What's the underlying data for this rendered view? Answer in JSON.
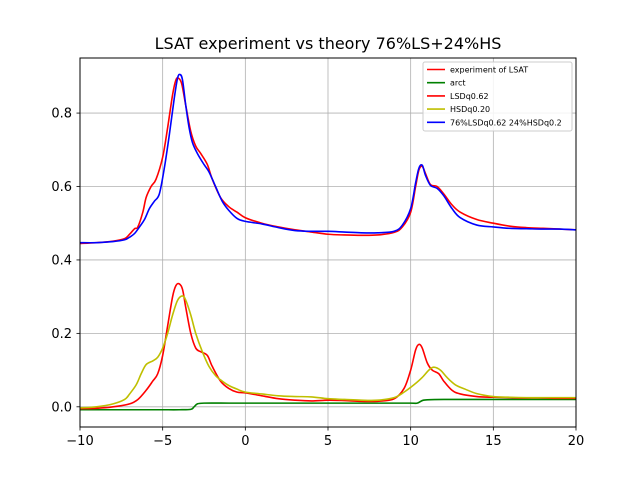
{
  "chart_data": {
    "type": "line",
    "title": "LSAT  experiment vs theory 76%LS+24%HS",
    "xlabel": "",
    "ylabel": "",
    "xlim": [
      -10,
      20
    ],
    "ylim": [
      -0.055,
      0.95
    ],
    "x_ticks": [
      -10,
      -5,
      0,
      5,
      10,
      15,
      20
    ],
    "x_tick_labels": [
      "−10",
      "−5",
      "0",
      "5",
      "10",
      "15",
      "20"
    ],
    "y_ticks": [
      0.0,
      0.2,
      0.4,
      0.6,
      0.8
    ],
    "y_tick_labels": [
      "0.0",
      "0.2",
      "0.4",
      "0.6",
      "0.8"
    ],
    "grid": true,
    "legend_position": "top-right",
    "series": [
      {
        "name": "experiment of LSAT",
        "color": "#ff0000",
        "points": [
          [
            -10,
            0.445
          ],
          [
            -9,
            0.447
          ],
          [
            -8,
            0.451
          ],
          [
            -7.3,
            0.458
          ],
          [
            -7,
            0.47
          ],
          [
            -6.7,
            0.485
          ],
          [
            -6.5,
            0.49
          ],
          [
            -6.2,
            0.53
          ],
          [
            -6,
            0.57
          ],
          [
            -5.7,
            0.6
          ],
          [
            -5.4,
            0.62
          ],
          [
            -5,
            0.68
          ],
          [
            -4.7,
            0.76
          ],
          [
            -4.4,
            0.85
          ],
          [
            -4.2,
            0.89
          ],
          [
            -4.05,
            0.895
          ],
          [
            -3.85,
            0.88
          ],
          [
            -3.6,
            0.82
          ],
          [
            -3.3,
            0.75
          ],
          [
            -3,
            0.71
          ],
          [
            -2.7,
            0.69
          ],
          [
            -2.3,
            0.66
          ],
          [
            -2,
            0.62
          ],
          [
            -1.5,
            0.57
          ],
          [
            -1,
            0.545
          ],
          [
            -0.5,
            0.53
          ],
          [
            0,
            0.515
          ],
          [
            1,
            0.5
          ],
          [
            2,
            0.49
          ],
          [
            3,
            0.482
          ],
          [
            4,
            0.476
          ],
          [
            5,
            0.47
          ],
          [
            6,
            0.468
          ],
          [
            7,
            0.467
          ],
          [
            8,
            0.468
          ],
          [
            9,
            0.475
          ],
          [
            9.5,
            0.49
          ],
          [
            10,
            0.53
          ],
          [
            10.3,
            0.6
          ],
          [
            10.5,
            0.645
          ],
          [
            10.7,
            0.655
          ],
          [
            10.9,
            0.635
          ],
          [
            11.2,
            0.605
          ],
          [
            11.6,
            0.6
          ],
          [
            12,
            0.58
          ],
          [
            12.5,
            0.55
          ],
          [
            13,
            0.53
          ],
          [
            14,
            0.51
          ],
          [
            15,
            0.5
          ],
          [
            16,
            0.492
          ],
          [
            17,
            0.488
          ],
          [
            18,
            0.486
          ],
          [
            19,
            0.484
          ],
          [
            20,
            0.482
          ]
        ]
      },
      {
        "name": "arct",
        "color": "#008000",
        "points": [
          [
            -10,
            -0.008
          ],
          [
            -9,
            -0.008
          ],
          [
            -8,
            -0.008
          ],
          [
            -7,
            -0.008
          ],
          [
            -6,
            -0.008
          ],
          [
            -5,
            -0.008
          ],
          [
            -4,
            -0.008
          ],
          [
            -3.3,
            -0.007
          ],
          [
            -3.1,
            0.0
          ],
          [
            -2.9,
            0.008
          ],
          [
            -2.5,
            0.01
          ],
          [
            -1,
            0.01
          ],
          [
            0,
            0.01
          ],
          [
            2,
            0.01
          ],
          [
            4,
            0.01
          ],
          [
            6,
            0.01
          ],
          [
            8,
            0.01
          ],
          [
            10,
            0.01
          ],
          [
            10.4,
            0.01
          ],
          [
            10.7,
            0.017
          ],
          [
            11,
            0.019
          ],
          [
            12,
            0.02
          ],
          [
            14,
            0.02
          ],
          [
            16,
            0.02
          ],
          [
            18,
            0.02
          ],
          [
            20,
            0.02
          ]
        ]
      },
      {
        "name": "LSDq0.62",
        "color": "#ff0000",
        "points": [
          [
            -10,
            -0.005
          ],
          [
            -9,
            -0.004
          ],
          [
            -8,
            0.0
          ],
          [
            -7,
            0.008
          ],
          [
            -6.5,
            0.02
          ],
          [
            -6,
            0.045
          ],
          [
            -5.6,
            0.07
          ],
          [
            -5.3,
            0.09
          ],
          [
            -5,
            0.14
          ],
          [
            -4.7,
            0.22
          ],
          [
            -4.4,
            0.3
          ],
          [
            -4.2,
            0.33
          ],
          [
            -4.0,
            0.335
          ],
          [
            -3.8,
            0.32
          ],
          [
            -3.6,
            0.27
          ],
          [
            -3.3,
            0.2
          ],
          [
            -3,
            0.16
          ],
          [
            -2.7,
            0.15
          ],
          [
            -2.3,
            0.14
          ],
          [
            -2,
            0.11
          ],
          [
            -1.5,
            0.07
          ],
          [
            -1,
            0.05
          ],
          [
            -0.5,
            0.04
          ],
          [
            0,
            0.038
          ],
          [
            1,
            0.03
          ],
          [
            2,
            0.022
          ],
          [
            3,
            0.018
          ],
          [
            4,
            0.016
          ],
          [
            5,
            0.018
          ],
          [
            6,
            0.017
          ],
          [
            7,
            0.015
          ],
          [
            8,
            0.015
          ],
          [
            9,
            0.022
          ],
          [
            9.6,
            0.05
          ],
          [
            10,
            0.1
          ],
          [
            10.3,
            0.155
          ],
          [
            10.5,
            0.17
          ],
          [
            10.7,
            0.16
          ],
          [
            11,
            0.12
          ],
          [
            11.3,
            0.1
          ],
          [
            11.7,
            0.09
          ],
          [
            12,
            0.07
          ],
          [
            12.5,
            0.045
          ],
          [
            13,
            0.035
          ],
          [
            14,
            0.028
          ],
          [
            15,
            0.026
          ],
          [
            16,
            0.025
          ],
          [
            17,
            0.024
          ],
          [
            18,
            0.024
          ],
          [
            19,
            0.023
          ],
          [
            20,
            0.023
          ]
        ]
      },
      {
        "name": "HSDq0.20",
        "color": "#bfbf00",
        "points": [
          [
            -10,
            -0.003
          ],
          [
            -9,
            0.0
          ],
          [
            -8,
            0.008
          ],
          [
            -7.3,
            0.02
          ],
          [
            -7,
            0.035
          ],
          [
            -6.6,
            0.06
          ],
          [
            -6.3,
            0.09
          ],
          [
            -6,
            0.115
          ],
          [
            -5.6,
            0.125
          ],
          [
            -5.3,
            0.135
          ],
          [
            -5,
            0.16
          ],
          [
            -4.7,
            0.2
          ],
          [
            -4.4,
            0.25
          ],
          [
            -4.1,
            0.29
          ],
          [
            -3.8,
            0.302
          ],
          [
            -3.6,
            0.29
          ],
          [
            -3.3,
            0.25
          ],
          [
            -3,
            0.2
          ],
          [
            -2.6,
            0.15
          ],
          [
            -2.2,
            0.11
          ],
          [
            -1.8,
            0.085
          ],
          [
            -1.4,
            0.07
          ],
          [
            -1,
            0.058
          ],
          [
            -0.5,
            0.048
          ],
          [
            0,
            0.04
          ],
          [
            1,
            0.035
          ],
          [
            2,
            0.03
          ],
          [
            3,
            0.028
          ],
          [
            4,
            0.027
          ],
          [
            5,
            0.022
          ],
          [
            6,
            0.02
          ],
          [
            7,
            0.018
          ],
          [
            8,
            0.018
          ],
          [
            9,
            0.025
          ],
          [
            9.6,
            0.04
          ],
          [
            10.2,
            0.06
          ],
          [
            10.7,
            0.08
          ],
          [
            11.1,
            0.1
          ],
          [
            11.4,
            0.108
          ],
          [
            11.8,
            0.1
          ],
          [
            12.2,
            0.08
          ],
          [
            12.7,
            0.06
          ],
          [
            13.3,
            0.048
          ],
          [
            14,
            0.036
          ],
          [
            15,
            0.028
          ],
          [
            16,
            0.026
          ],
          [
            17,
            0.025
          ],
          [
            18,
            0.025
          ],
          [
            19,
            0.025
          ],
          [
            20,
            0.025
          ]
        ]
      },
      {
        "name": "76%LSDq0.62 24%HSDq0.2",
        "color": "#0000ff",
        "points": [
          [
            -10,
            0.447
          ],
          [
            -9,
            0.447
          ],
          [
            -8,
            0.45
          ],
          [
            -7.3,
            0.455
          ],
          [
            -7,
            0.462
          ],
          [
            -6.7,
            0.472
          ],
          [
            -6.4,
            0.49
          ],
          [
            -6.1,
            0.51
          ],
          [
            -5.8,
            0.54
          ],
          [
            -5.5,
            0.56
          ],
          [
            -5.2,
            0.58
          ],
          [
            -4.9,
            0.65
          ],
          [
            -4.6,
            0.74
          ],
          [
            -4.3,
            0.84
          ],
          [
            -4.1,
            0.895
          ],
          [
            -3.95,
            0.905
          ],
          [
            -3.8,
            0.89
          ],
          [
            -3.6,
            0.82
          ],
          [
            -3.4,
            0.76
          ],
          [
            -3.2,
            0.72
          ],
          [
            -2.9,
            0.69
          ],
          [
            -2.5,
            0.66
          ],
          [
            -2.2,
            0.64
          ],
          [
            -1.8,
            0.6
          ],
          [
            -1.4,
            0.56
          ],
          [
            -1,
            0.535
          ],
          [
            -0.5,
            0.513
          ],
          [
            0,
            0.505
          ],
          [
            1,
            0.498
          ],
          [
            2,
            0.488
          ],
          [
            3,
            0.48
          ],
          [
            4,
            0.478
          ],
          [
            5,
            0.478
          ],
          [
            6,
            0.476
          ],
          [
            7,
            0.474
          ],
          [
            8,
            0.474
          ],
          [
            9,
            0.478
          ],
          [
            9.5,
            0.495
          ],
          [
            10,
            0.54
          ],
          [
            10.3,
            0.61
          ],
          [
            10.5,
            0.65
          ],
          [
            10.7,
            0.658
          ],
          [
            10.9,
            0.63
          ],
          [
            11.2,
            0.603
          ],
          [
            11.6,
            0.595
          ],
          [
            12,
            0.575
          ],
          [
            12.5,
            0.54
          ],
          [
            13,
            0.515
          ],
          [
            14,
            0.495
          ],
          [
            15,
            0.49
          ],
          [
            16,
            0.486
          ],
          [
            17,
            0.485
          ],
          [
            18,
            0.484
          ],
          [
            19,
            0.484
          ],
          [
            20,
            0.482
          ]
        ]
      }
    ]
  }
}
